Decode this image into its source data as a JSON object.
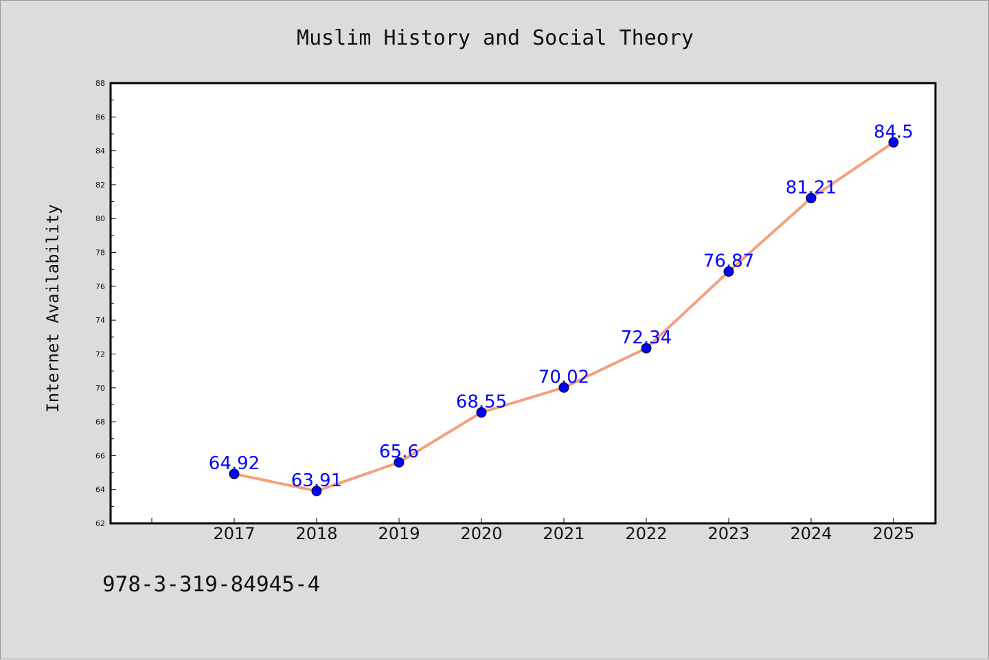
{
  "chart_data": {
    "type": "line",
    "title": "Muslim History and Social Theory",
    "xlabel": "",
    "ylabel": "Internet Availability",
    "categories": [
      "2017",
      "2018",
      "2019",
      "2020",
      "2021",
      "2022",
      "2023",
      "2024",
      "2025"
    ],
    "series": [
      {
        "values": [
          64.92,
          63.91,
          65.6,
          68.55,
          70.02,
          72.34,
          76.87,
          81.21,
          84.5
        ],
        "labels": [
          "64.92",
          "63.91",
          "65.6",
          "68.55",
          "70.02",
          "72.34",
          "76.87",
          "81.21",
          "84.5"
        ],
        "line_color": "#f4a07a",
        "marker_color": "#0000ff"
      }
    ],
    "ylim": [
      62,
      88
    ],
    "yticks": [
      62,
      64,
      66,
      68,
      70,
      72,
      74,
      76,
      78,
      80,
      82,
      84,
      86,
      88
    ],
    "grid": false,
    "legend": "none",
    "label_color": "#0000ff",
    "plot_background": "#ffffff",
    "figure_background": "#dcdcdc"
  },
  "footer": {
    "isbn": "978-3-319-84945-4"
  }
}
